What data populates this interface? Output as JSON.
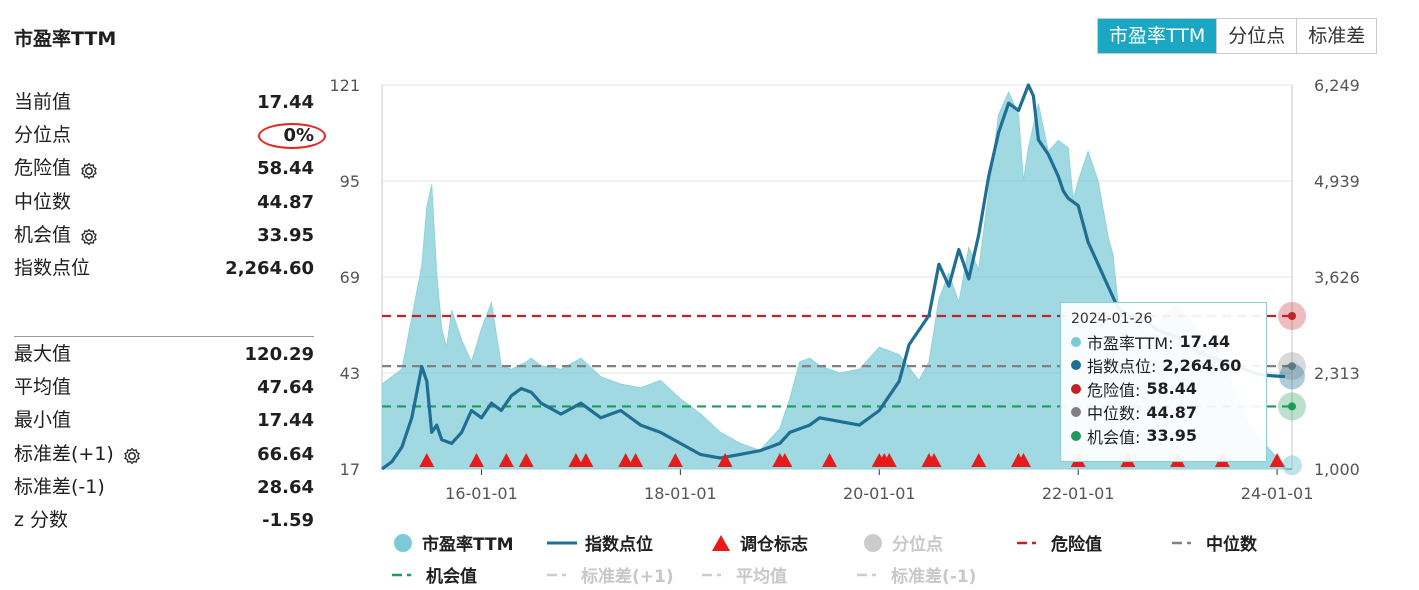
{
  "title": "市盈率TTM",
  "tabs": [
    {
      "label": "市盈率TTM",
      "active": true
    },
    {
      "label": "分位点",
      "active": false
    },
    {
      "label": "标准差",
      "active": false
    }
  ],
  "stats_top": [
    {
      "label": "当前值",
      "value": "17.44",
      "gear": false
    },
    {
      "label": "分位点",
      "value": "0%",
      "gear": false
    },
    {
      "label": "危险值",
      "value": "58.44",
      "gear": true
    },
    {
      "label": "中位数",
      "value": "44.87",
      "gear": false
    },
    {
      "label": "机会值",
      "value": "33.95",
      "gear": true
    },
    {
      "label": "指数点位",
      "value": "2,264.60",
      "gear": false
    }
  ],
  "stats_bottom": [
    {
      "label": "最大值",
      "value": "120.29",
      "gear": false
    },
    {
      "label": "平均值",
      "value": "47.64",
      "gear": false
    },
    {
      "label": "最小值",
      "value": "17.44",
      "gear": false
    },
    {
      "label": "标准差(+1)",
      "value": "66.64",
      "gear": true
    },
    {
      "label": "标准差(-1)",
      "value": "28.64",
      "gear": false
    },
    {
      "label": "z 分数",
      "value": "-1.59",
      "gear": false
    }
  ],
  "tooltip": {
    "date": "2024-01-26",
    "rows": [
      {
        "label": "市盈率TTM:",
        "value": "17.44",
        "color": "#7ccad6"
      },
      {
        "label": "指数点位:",
        "value": "2,264.60",
        "color": "#1f6e93"
      },
      {
        "label": "危险值:",
        "value": "58.44",
        "color": "#c0222a"
      },
      {
        "label": "中位数:",
        "value": "44.87",
        "color": "#808080"
      },
      {
        "label": "机会值:",
        "value": "33.95",
        "color": "#1e9a5a"
      }
    ]
  },
  "legend": [
    {
      "label": "市盈率TTM",
      "kind": "dot",
      "color": "#7ccad6",
      "enabled": true
    },
    {
      "label": "指数点位",
      "kind": "line",
      "color": "#1f6e93",
      "enabled": true
    },
    {
      "label": "调仓标志",
      "kind": "triangle",
      "color": "#e81b1b",
      "enabled": true
    },
    {
      "label": "分位点",
      "kind": "dot",
      "color": "#cccccc",
      "enabled": false
    },
    {
      "label": "危险值",
      "kind": "dash",
      "color": "#c0222a",
      "enabled": true
    },
    {
      "label": "中位数",
      "kind": "dash",
      "color": "#808080",
      "enabled": true
    },
    {
      "label": "机会值",
      "kind": "dash",
      "color": "#1e9a5a",
      "enabled": true
    },
    {
      "label": "标准差(+1)",
      "kind": "dash",
      "color": "#cccccc",
      "enabled": false
    },
    {
      "label": "平均值",
      "kind": "dash",
      "color": "#cccccc",
      "enabled": false
    },
    {
      "label": "标准差(-1)",
      "kind": "dash",
      "color": "#cccccc",
      "enabled": false
    }
  ],
  "chart_data": {
    "type": "area",
    "x_ticks": [
      "16-01-01",
      "18-01-01",
      "20-01-01",
      "22-01-01",
      "24-01-01"
    ],
    "x_tick_dates": [
      2016.0,
      2018.0,
      2020.0,
      2022.0,
      2024.0
    ],
    "x_range": [
      2015.0,
      2024.15
    ],
    "y_left_ticks": [
      "17",
      "43",
      "69",
      "95",
      "121"
    ],
    "y_left_range": [
      17,
      121
    ],
    "y_right_ticks": [
      "1,000",
      "2,313",
      "3,626",
      "4,939",
      "6,249"
    ],
    "y_right_range": [
      1000,
      6249
    ],
    "reference_lines": [
      {
        "name": "危险值",
        "value": 58.44,
        "color": "#c0222a"
      },
      {
        "name": "中位数",
        "value": 44.87,
        "color": "#808080"
      },
      {
        "name": "机会值",
        "value": 33.95,
        "color": "#1e9a5a"
      }
    ],
    "series": [
      {
        "name": "市盈率TTM",
        "kind": "area",
        "color": "#7ccad6",
        "x": [
          2015.0,
          2015.1,
          2015.2,
          2015.3,
          2015.4,
          2015.45,
          2015.5,
          2015.55,
          2015.6,
          2015.65,
          2015.7,
          2015.8,
          2015.9,
          2016.0,
          2016.1,
          2016.2,
          2016.3,
          2016.45,
          2016.5,
          2016.6,
          2016.8,
          2017.0,
          2017.2,
          2017.4,
          2017.6,
          2017.8,
          2018.0,
          2018.2,
          2018.4,
          2018.6,
          2018.8,
          2018.9,
          2019.0,
          2019.1,
          2019.2,
          2019.3,
          2019.4,
          2019.6,
          2019.8,
          2020.0,
          2020.2,
          2020.4,
          2020.5,
          2020.6,
          2020.7,
          2020.8,
          2020.9,
          2021.0,
          2021.1,
          2021.2,
          2021.3,
          2021.4,
          2021.45,
          2021.5,
          2021.6,
          2021.7,
          2021.8,
          2021.9,
          2021.95,
          2022.0,
          2022.05,
          2022.1,
          2022.2,
          2022.3,
          2022.35,
          2022.4,
          2022.5,
          2022.6,
          2022.7,
          2022.8,
          2022.9,
          2023.0,
          2023.1,
          2023.2,
          2023.3,
          2023.4,
          2023.5,
          2023.6,
          2023.7,
          2023.8,
          2023.9,
          2024.0,
          2024.08
        ],
        "y": [
          40,
          42,
          44,
          58,
          72,
          88,
          94,
          70,
          55,
          50,
          60,
          52,
          46,
          55,
          62,
          45,
          44,
          46,
          47,
          45,
          44,
          47,
          42,
          40,
          39,
          41,
          36,
          32,
          27,
          24,
          22,
          25,
          28,
          36,
          46,
          47,
          45,
          43,
          44,
          50,
          48,
          41,
          46,
          63,
          70,
          62,
          77,
          71,
          92,
          113,
          119,
          113,
          95,
          104,
          116,
          103,
          106,
          104,
          90,
          95,
          99,
          103,
          95,
          80,
          75,
          62,
          58,
          55,
          54,
          55,
          60,
          61,
          58,
          55,
          52,
          50,
          43,
          37,
          30,
          26,
          23,
          20,
          18
        ]
      },
      {
        "name": "指数点位",
        "kind": "line",
        "color": "#1f6e93",
        "x": [
          2015.0,
          2015.1,
          2015.2,
          2015.3,
          2015.4,
          2015.45,
          2015.5,
          2015.55,
          2015.6,
          2015.7,
          2015.8,
          2015.9,
          2016.0,
          2016.1,
          2016.2,
          2016.3,
          2016.4,
          2016.5,
          2016.6,
          2016.8,
          2017.0,
          2017.2,
          2017.4,
          2017.6,
          2017.8,
          2018.0,
          2018.2,
          2018.4,
          2018.6,
          2018.8,
          2018.9,
          2019.0,
          2019.1,
          2019.2,
          2019.3,
          2019.4,
          2019.6,
          2019.8,
          2020.0,
          2020.2,
          2020.3,
          2020.5,
          2020.6,
          2020.7,
          2020.8,
          2020.9,
          2021.0,
          2021.1,
          2021.2,
          2021.3,
          2021.4,
          2021.5,
          2021.55,
          2021.6,
          2021.7,
          2021.8,
          2021.85,
          2021.9,
          2022.0,
          2022.1,
          2022.2,
          2022.3,
          2022.4,
          2022.5,
          2022.6,
          2022.7,
          2022.8,
          2022.9,
          2023.0,
          2023.1,
          2023.2,
          2023.3,
          2023.4,
          2023.5,
          2023.6,
          2023.7,
          2023.8,
          2023.9,
          2024.0,
          2024.08
        ],
        "y": [
          1000,
          1100,
          1300,
          1700,
          2400,
          2200,
          1500,
          1600,
          1400,
          1350,
          1500,
          1800,
          1700,
          1900,
          1800,
          2000,
          2100,
          2050,
          1900,
          1750,
          1900,
          1700,
          1800,
          1600,
          1500,
          1350,
          1200,
          1150,
          1200,
          1250,
          1300,
          1350,
          1500,
          1550,
          1600,
          1700,
          1650,
          1600,
          1800,
          2200,
          2700,
          3100,
          3800,
          3500,
          4000,
          3600,
          4200,
          5000,
          5600,
          6000,
          5900,
          6249,
          6100,
          5500,
          5300,
          5000,
          4800,
          4700,
          4600,
          4100,
          3800,
          3500,
          3200,
          3100,
          3050,
          3000,
          2900,
          2850,
          2800,
          2700,
          2600,
          2550,
          2500,
          2450,
          2400,
          2350,
          2300,
          2280,
          2270,
          2264.6
        ]
      }
    ],
    "rebalance_markers_x": [
      2015.45,
      2015.95,
      2016.25,
      2016.45,
      2016.95,
      2017.05,
      2017.45,
      2017.55,
      2017.95,
      2018.45,
      2019.0,
      2019.05,
      2019.5,
      2020.0,
      2020.05,
      2020.1,
      2020.5,
      2020.55,
      2021.0,
      2021.4,
      2021.45,
      2022.0,
      2022.5,
      2023.0,
      2023.45,
      2024.0
    ]
  }
}
